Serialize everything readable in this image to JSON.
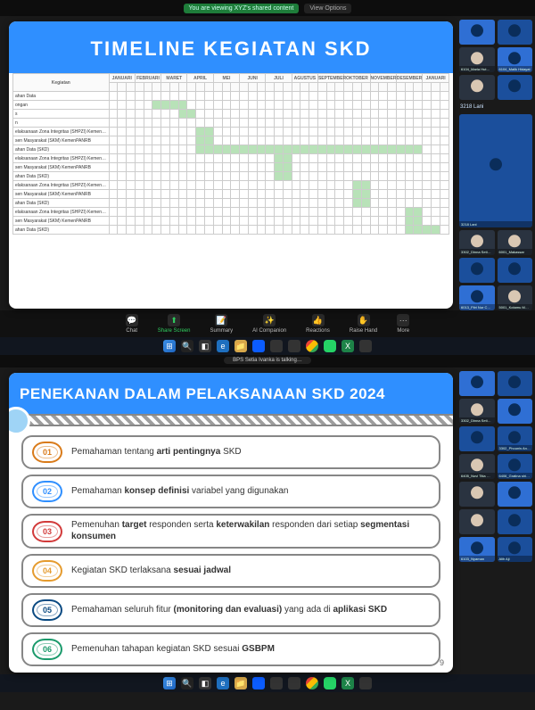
{
  "top": {
    "zoom_status": "You are viewing XYZ's shared content",
    "view_opts": "View Options",
    "slide_title": "TIMELINE KEGIATAN SKD",
    "months": [
      "JANUARI",
      "FEBRUARI",
      "MARET",
      "APRIL",
      "MEI",
      "JUNI",
      "JULI",
      "AGUSTUS",
      "SEPTEMBER",
      "OKTOBER",
      "NOVEMBER",
      "DESEMBER",
      "JANUARI"
    ],
    "row_header": "Kegiatan",
    "rows": [
      {
        "label": "ahan Data",
        "cells": [
          0,
          0,
          0,
          0,
          0,
          0,
          0,
          0,
          0,
          0,
          0,
          0,
          0,
          0,
          0,
          0,
          0,
          0,
          0,
          0,
          0,
          0,
          0,
          0,
          0,
          0,
          0,
          0,
          0,
          0,
          0,
          0,
          0,
          0,
          0,
          0,
          0,
          0,
          0
        ]
      },
      {
        "label": "ongan",
        "cells": [
          0,
          0,
          0,
          0,
          0,
          1,
          1,
          1,
          1,
          0,
          0,
          0,
          0,
          0,
          0,
          0,
          0,
          0,
          0,
          0,
          0,
          0,
          0,
          0,
          0,
          0,
          0,
          0,
          0,
          0,
          0,
          0,
          0,
          0,
          0,
          0,
          0,
          0,
          0
        ]
      },
      {
        "label": "s",
        "cells": [
          0,
          0,
          0,
          0,
          0,
          0,
          0,
          0,
          1,
          1,
          0,
          0,
          0,
          0,
          0,
          0,
          0,
          0,
          0,
          0,
          0,
          0,
          0,
          0,
          0,
          0,
          0,
          0,
          0,
          0,
          0,
          0,
          0,
          0,
          0,
          0,
          0,
          0,
          0
        ]
      },
      {
        "label": "n",
        "cells": [
          0,
          0,
          0,
          0,
          0,
          0,
          0,
          0,
          0,
          0,
          0,
          0,
          0,
          0,
          0,
          0,
          0,
          0,
          0,
          0,
          0,
          0,
          0,
          0,
          0,
          0,
          0,
          0,
          0,
          0,
          0,
          0,
          0,
          0,
          0,
          0,
          0,
          0,
          0
        ]
      },
      {
        "label": "elaksanaan Zona Integritas (SHPZI) KemenPANRB",
        "cells": [
          0,
          0,
          0,
          0,
          0,
          0,
          0,
          0,
          0,
          0,
          1,
          1,
          0,
          0,
          0,
          0,
          0,
          0,
          0,
          0,
          0,
          0,
          0,
          0,
          0,
          0,
          0,
          0,
          0,
          0,
          0,
          0,
          0,
          0,
          0,
          0,
          0,
          0,
          0
        ]
      },
      {
        "label": "sen Masyarakat (SKM) KemenPANRB",
        "cells": [
          0,
          0,
          0,
          0,
          0,
          0,
          0,
          0,
          0,
          0,
          1,
          1,
          0,
          0,
          0,
          0,
          0,
          0,
          0,
          0,
          0,
          0,
          0,
          0,
          0,
          0,
          0,
          0,
          0,
          0,
          0,
          0,
          0,
          0,
          0,
          0,
          0,
          0,
          0
        ]
      },
      {
        "label": "ahan Data (SKD)",
        "cells": [
          0,
          0,
          0,
          0,
          0,
          0,
          0,
          0,
          0,
          0,
          1,
          1,
          1,
          1,
          1,
          1,
          1,
          1,
          1,
          1,
          1,
          1,
          1,
          1,
          1,
          1,
          1,
          1,
          1,
          1,
          1,
          1,
          1,
          1,
          1,
          1,
          0,
          0,
          0
        ]
      },
      {
        "label": "elaksanaan Zona Integritas (SHPZI) KemenPANRB",
        "cells": [
          0,
          0,
          0,
          0,
          0,
          0,
          0,
          0,
          0,
          0,
          0,
          0,
          0,
          0,
          0,
          0,
          0,
          0,
          0,
          1,
          1,
          0,
          0,
          0,
          0,
          0,
          0,
          0,
          0,
          0,
          0,
          0,
          0,
          0,
          0,
          0,
          0,
          0,
          0
        ]
      },
      {
        "label": "sen Masyarakat (SKM) KemenPANRB",
        "cells": [
          0,
          0,
          0,
          0,
          0,
          0,
          0,
          0,
          0,
          0,
          0,
          0,
          0,
          0,
          0,
          0,
          0,
          0,
          0,
          1,
          1,
          0,
          0,
          0,
          0,
          0,
          0,
          0,
          0,
          0,
          0,
          0,
          0,
          0,
          0,
          0,
          0,
          0,
          0
        ]
      },
      {
        "label": "ahan Data (SKD)",
        "cells": [
          0,
          0,
          0,
          0,
          0,
          0,
          0,
          0,
          0,
          0,
          0,
          0,
          0,
          0,
          0,
          0,
          0,
          0,
          0,
          1,
          1,
          0,
          0,
          0,
          0,
          0,
          0,
          0,
          0,
          0,
          0,
          0,
          0,
          0,
          0,
          0,
          0,
          0,
          0
        ]
      },
      {
        "label": "elaksanaan Zona Integritas (SHPZI) KemenPANRB",
        "cells": [
          0,
          0,
          0,
          0,
          0,
          0,
          0,
          0,
          0,
          0,
          0,
          0,
          0,
          0,
          0,
          0,
          0,
          0,
          0,
          0,
          0,
          0,
          0,
          0,
          0,
          0,
          0,
          0,
          1,
          1,
          0,
          0,
          0,
          0,
          0,
          0,
          0,
          0,
          0
        ]
      },
      {
        "label": "sen Masyarakat (SKM) KemenPANRB",
        "cells": [
          0,
          0,
          0,
          0,
          0,
          0,
          0,
          0,
          0,
          0,
          0,
          0,
          0,
          0,
          0,
          0,
          0,
          0,
          0,
          0,
          0,
          0,
          0,
          0,
          0,
          0,
          0,
          0,
          1,
          1,
          0,
          0,
          0,
          0,
          0,
          0,
          0,
          0,
          0
        ]
      },
      {
        "label": "ahan Data (SKD)",
        "cells": [
          0,
          0,
          0,
          0,
          0,
          0,
          0,
          0,
          0,
          0,
          0,
          0,
          0,
          0,
          0,
          0,
          0,
          0,
          0,
          0,
          0,
          0,
          0,
          0,
          0,
          0,
          0,
          0,
          1,
          1,
          0,
          0,
          0,
          0,
          0,
          0,
          0,
          0,
          0
        ]
      },
      {
        "label": "elaksanaan Zona Integritas (SHPZI) KemenPANRB",
        "cells": [
          0,
          0,
          0,
          0,
          0,
          0,
          0,
          0,
          0,
          0,
          0,
          0,
          0,
          0,
          0,
          0,
          0,
          0,
          0,
          0,
          0,
          0,
          0,
          0,
          0,
          0,
          0,
          0,
          0,
          0,
          0,
          0,
          0,
          0,
          1,
          1,
          0,
          0,
          0
        ]
      },
      {
        "label": "sen Masyarakat (SKM) KemenPANRB",
        "cells": [
          0,
          0,
          0,
          0,
          0,
          0,
          0,
          0,
          0,
          0,
          0,
          0,
          0,
          0,
          0,
          0,
          0,
          0,
          0,
          0,
          0,
          0,
          0,
          0,
          0,
          0,
          0,
          0,
          0,
          0,
          0,
          0,
          0,
          0,
          1,
          1,
          0,
          0,
          0
        ]
      },
      {
        "label": "ahan Data (SKD)",
        "cells": [
          0,
          0,
          0,
          0,
          0,
          0,
          0,
          0,
          0,
          0,
          0,
          0,
          0,
          0,
          0,
          0,
          0,
          0,
          0,
          0,
          0,
          0,
          0,
          0,
          0,
          0,
          0,
          0,
          0,
          0,
          0,
          0,
          0,
          0,
          1,
          1,
          1,
          1,
          0
        ]
      }
    ],
    "toolbar": [
      "Chat",
      "Share Screen",
      "Summary",
      "AI Companion",
      "Reactions",
      "Raise Hand",
      "More"
    ],
    "participants": [
      {
        "name": "",
        "cam": false
      },
      {
        "name": "",
        "cam": false
      },
      {
        "name": "6104_Maria Hut…",
        "cam": true
      },
      {
        "name": "6104_Malik Hidayat",
        "cam": false
      },
      {
        "name": "",
        "cam": true
      },
      {
        "name": "",
        "cam": false
      },
      {
        "name": "3218 Lani",
        "count": true
      },
      {
        "name": "3218 Lani",
        "cam": false
      },
      {
        "name": "3302_Dinna Setia Pu…",
        "cam": true
      },
      {
        "name": "6001_Makassar",
        "cam": true
      },
      {
        "name": "",
        "cam": false
      },
      {
        "name": "",
        "cam": false
      },
      {
        "name": "6013_Fitri Nur Cah…",
        "cam": false
      },
      {
        "name": "5001_Kotamu Moh…",
        "cam": true
      }
    ]
  },
  "bottom": {
    "talking": "BPS Setia Ivanka is talking…",
    "slide_title": "PENEKANAN DALAM PELAKSANAAN SKD 2024",
    "items": [
      {
        "num": "01",
        "color": "#d97b1a",
        "html": "Pemahaman tentang <b>arti pentingnya</b> SKD"
      },
      {
        "num": "02",
        "color": "#2f8fff",
        "html": "Pemahaman <b>konsep definisi</b> variabel yang digunakan"
      },
      {
        "num": "03",
        "color": "#d23a3a",
        "html": "Pemenuhan <b>target</b> responden serta <b>keterwakilan</b> responden dari setiap <b>segmentasi konsumen</b>"
      },
      {
        "num": "04",
        "color": "#e59b2e",
        "html": "Kegiatan SKD terlaksana <b>sesuai jadwal</b>"
      },
      {
        "num": "05",
        "color": "#0b4a82",
        "html": "Pemahaman seluruh fitur <b>(monitoring dan evaluasi)</b> yang ada di <b>aplikasi SKD</b>"
      },
      {
        "num": "06",
        "color": "#1a9a6b",
        "html": "Pemenuhan tahapan kegiatan SKD sesuai <b>GSBPM</b>"
      }
    ],
    "page_num": "9",
    "participants": [
      {
        "name": "",
        "cam": false
      },
      {
        "name": "",
        "cam": false
      },
      {
        "name": "3302_Dinna Setia Pu…",
        "cam": true
      },
      {
        "name": "",
        "cam": false
      },
      {
        "name": "",
        "cam": false
      },
      {
        "name": "3302_Phounis Andente",
        "cam": false
      },
      {
        "name": "6405_Novi Titia W…",
        "cam": true
      },
      {
        "name": "6406_Gratina shirt A…",
        "cam": false
      },
      {
        "name": "",
        "cam": true
      },
      {
        "name": "",
        "cam": false
      },
      {
        "name": "",
        "cam": true
      },
      {
        "name": "",
        "cam": false
      },
      {
        "name": "6103_Nyaman",
        "cam": false
      },
      {
        "name": "Alih Aji",
        "cam": false
      }
    ]
  },
  "colors": {
    "accent": "#2f8fff",
    "gantt_fill": "#b8e2b8",
    "border": "#cccccc"
  }
}
